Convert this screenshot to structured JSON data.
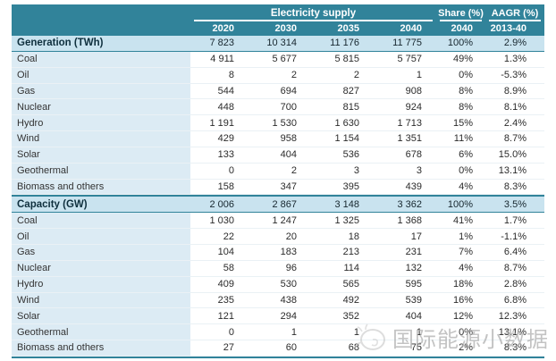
{
  "header": {
    "group_label": "Electricity supply",
    "share_label": "Share (%)",
    "aagr_label": "AAGR (%)",
    "year_cols": [
      "2020",
      "2030",
      "2035",
      "2040"
    ],
    "share_year": "2040",
    "aagr_period": "2013-40"
  },
  "colors": {
    "header_teal": "#31839A",
    "section_row_bg": "#C9E3EF",
    "label_column_bg": "#DCEBF4",
    "watermark_gray": "#ADADAD"
  },
  "chart_data": {
    "type": "table",
    "title": "Electricity supply",
    "columns": [
      "2020",
      "2030",
      "2035",
      "2040",
      "Share (%) 2040",
      "AAGR (%) 2013-40"
    ],
    "sections": [
      {
        "label": "Generation (TWh)",
        "values": [
          "7 823",
          "10 314",
          "11 176",
          "11 775",
          "100%",
          "2.9%"
        ],
        "rows": [
          {
            "label": "Coal",
            "values": [
              "4 911",
              "5 677",
              "5 815",
              "5 757",
              "49%",
              "1.3%"
            ]
          },
          {
            "label": "Oil",
            "values": [
              "8",
              "2",
              "2",
              "1",
              "0%",
              "-5.3%"
            ]
          },
          {
            "label": "Gas",
            "values": [
              "544",
              "694",
              "827",
              "908",
              "8%",
              "8.9%"
            ]
          },
          {
            "label": "Nuclear",
            "values": [
              "448",
              "700",
              "815",
              "924",
              "8%",
              "8.1%"
            ]
          },
          {
            "label": "Hydro",
            "values": [
              "1 191",
              "1 530",
              "1 630",
              "1 713",
              "15%",
              "2.4%"
            ]
          },
          {
            "label": "Wind",
            "values": [
              "429",
              "958",
              "1 154",
              "1 351",
              "11%",
              "8.7%"
            ]
          },
          {
            "label": "Solar",
            "values": [
              "133",
              "404",
              "536",
              "678",
              "6%",
              "15.0%"
            ]
          },
          {
            "label": "Geothermal",
            "values": [
              "0",
              "2",
              "3",
              "3",
              "0%",
              "13.1%"
            ]
          },
          {
            "label": "Biomass and others",
            "values": [
              "158",
              "347",
              "395",
              "439",
              "4%",
              "8.3%"
            ]
          }
        ]
      },
      {
        "label": "Capacity (GW)",
        "values": [
          "2 006",
          "2 867",
          "3 148",
          "3 362",
          "100%",
          "3.5%"
        ],
        "rows": [
          {
            "label": "Coal",
            "values": [
              "1 030",
              "1 247",
              "1 325",
              "1 368",
              "41%",
              "1.7%"
            ]
          },
          {
            "label": "Oil",
            "values": [
              "22",
              "20",
              "18",
              "17",
              "1%",
              "-1.1%"
            ]
          },
          {
            "label": "Gas",
            "values": [
              "104",
              "183",
              "213",
              "231",
              "7%",
              "6.4%"
            ]
          },
          {
            "label": "Nuclear",
            "values": [
              "58",
              "96",
              "114",
              "132",
              "4%",
              "8.7%"
            ]
          },
          {
            "label": "Hydro",
            "values": [
              "409",
              "530",
              "565",
              "595",
              "18%",
              "2.8%"
            ]
          },
          {
            "label": "Wind",
            "values": [
              "235",
              "438",
              "492",
              "539",
              "16%",
              "6.8%"
            ]
          },
          {
            "label": "Solar",
            "values": [
              "121",
              "294",
              "352",
              "404",
              "12%",
              "12.3%"
            ]
          },
          {
            "label": "Geothermal",
            "values": [
              "0",
              "1",
              "1",
              "1",
              "0%",
              "13.1%"
            ]
          },
          {
            "label": "Biomass and others",
            "values": [
              "27",
              "60",
              "68",
              "75",
              "2%",
              "8.3%"
            ]
          }
        ]
      }
    ]
  },
  "watermark": {
    "text": "国际能源小数据"
  }
}
